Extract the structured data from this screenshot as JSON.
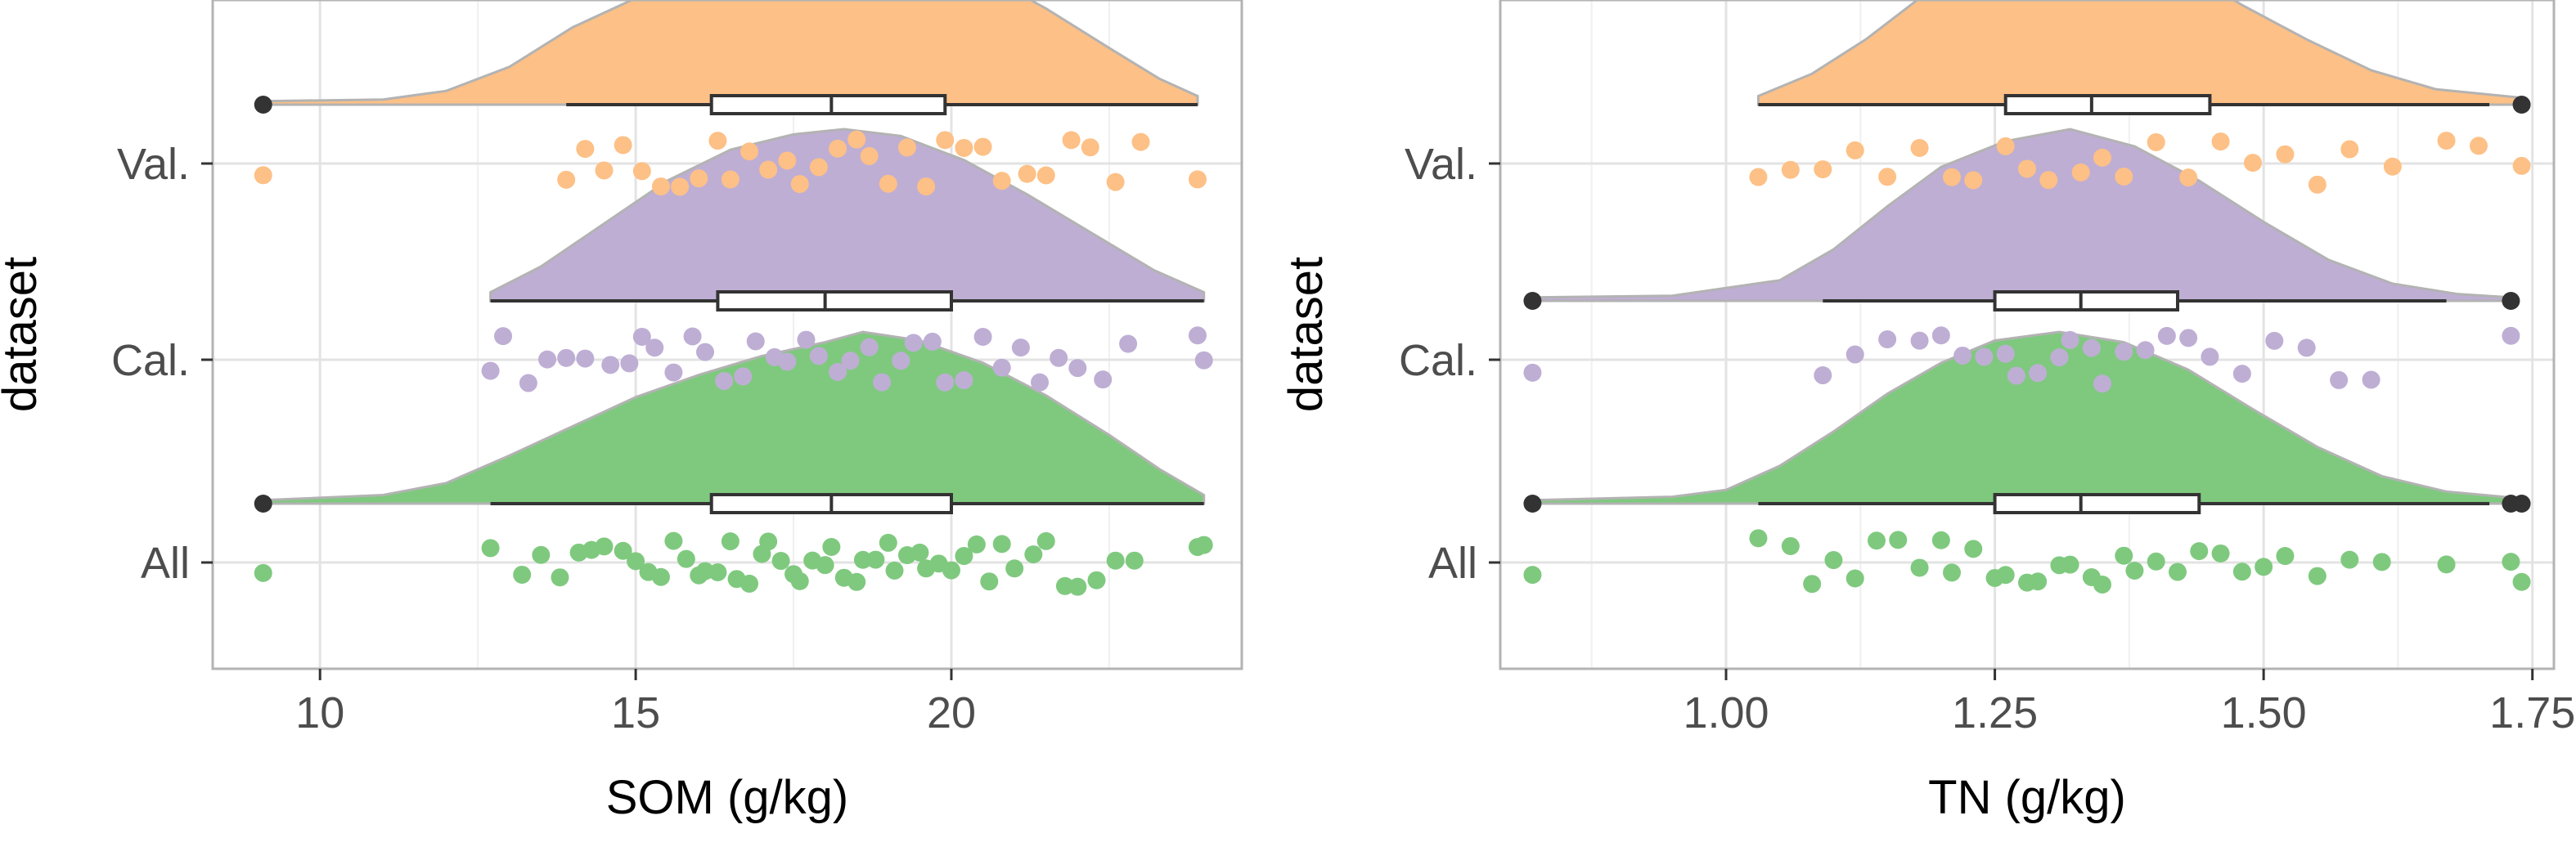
{
  "chart_data": [
    {
      "type": "raincloud",
      "xlabel": "SOM (g/kg)",
      "ylabel": "dataset",
      "xlim": [
        8.3,
        24.6
      ],
      "xticks": [
        10,
        15,
        20
      ],
      "xtick_labels": [
        "10",
        "15",
        "20"
      ],
      "grid": true,
      "categories": [
        "All",
        "Cal.",
        "Val."
      ],
      "series": [
        {
          "name": "All",
          "color": "#7fc97f",
          "min": 9.1,
          "max": 24.0,
          "box": {
            "q1": 16.2,
            "median": 18.1,
            "q3": 20.0,
            "whisker_low": 12.7,
            "whisker_high": 24.0
          },
          "outliers": [
            9.1
          ],
          "density": [
            [
              9.1,
              0.02
            ],
            [
              11.0,
              0.05
            ],
            [
              12.0,
              0.12
            ],
            [
              13.0,
              0.28
            ],
            [
              14.0,
              0.45
            ],
            [
              15.0,
              0.62
            ],
            [
              16.0,
              0.75
            ],
            [
              17.0,
              0.86
            ],
            [
              18.0,
              0.94
            ],
            [
              18.6,
              1.0
            ],
            [
              19.5,
              0.95
            ],
            [
              20.5,
              0.82
            ],
            [
              21.5,
              0.63
            ],
            [
              22.5,
              0.4
            ],
            [
              23.3,
              0.2
            ],
            [
              24.0,
              0.05
            ]
          ],
          "points": [
            9.1,
            12.7,
            13.2,
            13.5,
            13.8,
            14.1,
            14.3,
            14.5,
            14.8,
            15.0,
            15.2,
            15.4,
            15.6,
            15.8,
            16.0,
            16.1,
            16.3,
            16.5,
            16.6,
            16.8,
            17.0,
            17.1,
            17.3,
            17.5,
            17.6,
            17.8,
            18.0,
            18.1,
            18.3,
            18.5,
            18.6,
            18.8,
            19.0,
            19.1,
            19.3,
            19.5,
            19.6,
            19.8,
            20.0,
            20.2,
            20.4,
            20.6,
            20.8,
            21.0,
            21.3,
            21.5,
            21.8,
            22.0,
            22.3,
            22.6,
            22.9,
            23.9,
            24.0
          ]
        },
        {
          "name": "Cal.",
          "color": "#beaed4",
          "min": 12.7,
          "max": 24.0,
          "box": {
            "q1": 16.3,
            "median": 18.0,
            "q3": 20.0,
            "whisker_low": 12.7,
            "whisker_high": 24.0
          },
          "outliers": [],
          "density": [
            [
              12.7,
              0.05
            ],
            [
              13.5,
              0.2
            ],
            [
              14.5,
              0.45
            ],
            [
              15.5,
              0.7
            ],
            [
              16.5,
              0.88
            ],
            [
              17.5,
              0.97
            ],
            [
              18.3,
              1.0
            ],
            [
              19.2,
              0.96
            ],
            [
              20.2,
              0.82
            ],
            [
              21.2,
              0.62
            ],
            [
              22.2,
              0.4
            ],
            [
              23.2,
              0.18
            ],
            [
              24.0,
              0.05
            ]
          ],
          "points": [
            12.7,
            12.9,
            13.3,
            13.6,
            13.9,
            14.2,
            14.6,
            14.9,
            15.1,
            15.3,
            15.6,
            15.9,
            16.1,
            16.4,
            16.7,
            16.9,
            17.2,
            17.4,
            17.7,
            17.9,
            18.2,
            18.4,
            18.7,
            18.9,
            19.2,
            19.4,
            19.7,
            19.9,
            20.2,
            20.5,
            20.8,
            21.1,
            21.4,
            21.7,
            22.0,
            22.4,
            22.8,
            23.9,
            24.0
          ]
        },
        {
          "name": "Val.",
          "color": "#fdc086",
          "min": 9.1,
          "max": 24.0,
          "box": {
            "q1": 16.2,
            "median": 18.1,
            "q3": 19.9,
            "whisker_low": 13.9,
            "whisker_high": 23.9
          },
          "outliers": [
            9.1
          ],
          "density": [
            [
              9.1,
              0.02
            ],
            [
              11.0,
              0.03
            ],
            [
              12.0,
              0.08
            ],
            [
              13.0,
              0.22
            ],
            [
              14.0,
              0.45
            ],
            [
              15.0,
              0.62
            ],
            [
              16.0,
              0.76
            ],
            [
              17.0,
              0.9
            ],
            [
              18.0,
              0.99
            ],
            [
              18.6,
              1.0
            ],
            [
              19.5,
              0.93
            ],
            [
              20.5,
              0.76
            ],
            [
              21.5,
              0.56
            ],
            [
              22.5,
              0.33
            ],
            [
              23.3,
              0.15
            ],
            [
              23.9,
              0.05
            ]
          ],
          "points": [
            9.1,
            13.9,
            14.2,
            14.5,
            14.8,
            15.1,
            15.4,
            15.7,
            16.0,
            16.3,
            16.5,
            16.8,
            17.1,
            17.4,
            17.6,
            17.9,
            18.2,
            18.5,
            18.7,
            19.0,
            19.3,
            19.6,
            19.9,
            20.2,
            20.5,
            20.8,
            21.2,
            21.5,
            21.9,
            22.2,
            22.6,
            23.0,
            23.9
          ]
        }
      ]
    },
    {
      "type": "raincloud",
      "xlabel": "TN (g/kg)",
      "ylabel": "dataset",
      "xlim": [
        0.79,
        1.77
      ],
      "xticks": [
        1.0,
        1.25,
        1.5,
        1.75
      ],
      "xtick_labels": [
        "1.00",
        "1.25",
        "1.50",
        "1.75"
      ],
      "grid": true,
      "categories": [
        "All",
        "Cal.",
        "Val."
      ],
      "series": [
        {
          "name": "All",
          "color": "#7fc97f",
          "min": 0.82,
          "max": 1.74,
          "box": {
            "q1": 1.25,
            "median": 1.33,
            "q3": 1.44,
            "whisker_low": 1.03,
            "whisker_high": 1.71
          },
          "outliers": [
            0.82,
            1.73,
            1.74
          ],
          "density": [
            [
              0.82,
              0.02
            ],
            [
              0.95,
              0.04
            ],
            [
              1.0,
              0.08
            ],
            [
              1.05,
              0.22
            ],
            [
              1.1,
              0.42
            ],
            [
              1.15,
              0.64
            ],
            [
              1.2,
              0.82
            ],
            [
              1.25,
              0.95
            ],
            [
              1.31,
              1.0
            ],
            [
              1.37,
              0.94
            ],
            [
              1.43,
              0.78
            ],
            [
              1.49,
              0.55
            ],
            [
              1.55,
              0.33
            ],
            [
              1.61,
              0.16
            ],
            [
              1.67,
              0.07
            ],
            [
              1.74,
              0.03
            ]
          ],
          "points": [
            0.82,
            1.03,
            1.06,
            1.08,
            1.1,
            1.12,
            1.14,
            1.16,
            1.18,
            1.2,
            1.21,
            1.23,
            1.25,
            1.26,
            1.28,
            1.29,
            1.31,
            1.32,
            1.34,
            1.35,
            1.37,
            1.38,
            1.4,
            1.42,
            1.44,
            1.46,
            1.48,
            1.5,
            1.52,
            1.55,
            1.58,
            1.61,
            1.67,
            1.73,
            1.74
          ]
        },
        {
          "name": "Cal.",
          "color": "#beaed4",
          "min": 0.82,
          "max": 1.73,
          "box": {
            "q1": 1.25,
            "median": 1.33,
            "q3": 1.42,
            "whisker_low": 1.09,
            "whisker_high": 1.67
          },
          "outliers": [
            0.82,
            1.73
          ],
          "density": [
            [
              0.82,
              0.02
            ],
            [
              0.95,
              0.03
            ],
            [
              1.05,
              0.12
            ],
            [
              1.1,
              0.3
            ],
            [
              1.15,
              0.55
            ],
            [
              1.2,
              0.78
            ],
            [
              1.26,
              0.93
            ],
            [
              1.32,
              1.0
            ],
            [
              1.38,
              0.9
            ],
            [
              1.44,
              0.7
            ],
            [
              1.5,
              0.46
            ],
            [
              1.56,
              0.24
            ],
            [
              1.62,
              0.1
            ],
            [
              1.68,
              0.04
            ],
            [
              1.73,
              0.02
            ]
          ],
          "points": [
            0.82,
            1.09,
            1.12,
            1.15,
            1.18,
            1.2,
            1.22,
            1.24,
            1.26,
            1.27,
            1.29,
            1.31,
            1.32,
            1.34,
            1.35,
            1.37,
            1.39,
            1.41,
            1.43,
            1.45,
            1.48,
            1.51,
            1.54,
            1.57,
            1.6,
            1.73
          ]
        },
        {
          "name": "Val.",
          "color": "#fdc086",
          "min": 1.03,
          "max": 1.74,
          "box": {
            "q1": 1.26,
            "median": 1.34,
            "q3": 1.45,
            "whisker_low": 1.03,
            "whisker_high": 1.71
          },
          "outliers": [
            1.74
          ],
          "density": [
            [
              1.03,
              0.05
            ],
            [
              1.08,
              0.18
            ],
            [
              1.13,
              0.38
            ],
            [
              1.18,
              0.62
            ],
            [
              1.24,
              0.86
            ],
            [
              1.3,
              1.0
            ],
            [
              1.36,
              0.95
            ],
            [
              1.42,
              0.8
            ],
            [
              1.48,
              0.58
            ],
            [
              1.54,
              0.38
            ],
            [
              1.6,
              0.2
            ],
            [
              1.66,
              0.09
            ],
            [
              1.74,
              0.04
            ]
          ],
          "points": [
            1.03,
            1.06,
            1.09,
            1.12,
            1.15,
            1.18,
            1.21,
            1.23,
            1.26,
            1.28,
            1.3,
            1.33,
            1.35,
            1.37,
            1.4,
            1.43,
            1.46,
            1.49,
            1.52,
            1.55,
            1.58,
            1.62,
            1.67,
            1.7,
            1.74
          ]
        }
      ]
    }
  ]
}
